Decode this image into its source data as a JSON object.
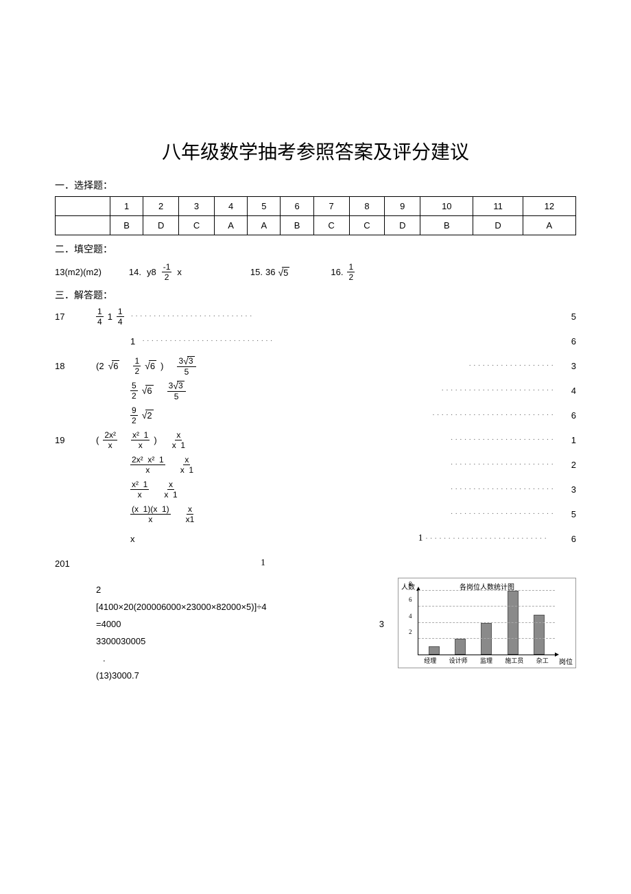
{
  "title": "八年级数学抽考参照答案及评分建议",
  "sections": {
    "s1": "一．选择题：",
    "s2": "二．填空题：",
    "s3": "三．解答题："
  },
  "mc": {
    "nums": [
      "1",
      "2",
      "3",
      "4",
      "5",
      "6",
      "7",
      "8",
      "9",
      "10",
      "11",
      "12"
    ],
    "ans": [
      "B",
      "D",
      "C",
      "A",
      "A",
      "B",
      "C",
      "C",
      "D",
      "B",
      "D",
      "A"
    ]
  },
  "fill": {
    "q13": "13(m2)(m2)",
    "q14_a": "14.",
    "q14_b": "y8",
    "q14_frac_num": "-1",
    "q14_frac_den": "2",
    "q14_c": "x",
    "q15_a": "15.",
    "q15_b": "36",
    "q15_rad": "5",
    "q16_a": "16.",
    "q16_frac_num": "1",
    "q16_frac_den": "2"
  },
  "q17": {
    "num": "17",
    "l1_a": "1",
    "l1_b": "1",
    "l1_frac_num": "1",
    "l1_frac_den": "4",
    "l1_c": ".",
    "l1_lead": "4",
    "s1": "5",
    "l2": "1",
    "s2": "6"
  },
  "q18": {
    "num": "18",
    "l1_a": "(2",
    "l1_r1": "6",
    "l1_frac_num": "1",
    "l1_frac_den": "2",
    "l1_r2": "6",
    "l1_b": ")",
    "l1_f2_num": "3",
    "l1_f2_rad": "3",
    "l1_f2_den": "5",
    "s1": "3",
    "l2_f1_num": "5",
    "l2_f1_den": "2",
    "l2_r1": "6",
    "l2_f2_num": "3",
    "l2_f2_rad": "3",
    "l2_f2_den": "5",
    "s2": "4",
    "l3_frac_num": "9",
    "l3_frac_den": "2",
    "l3_rad": "2",
    "s3": "6"
  },
  "q19": {
    "num": "19",
    "l1": "(2x²/x − (x²−1)/x) · x/(x−1)",
    "s1": "1",
    "s2": "2",
    "s3": "3",
    "s4": "5",
    "l5_a": "x",
    "l5_b": "1",
    "s5": "6"
  },
  "q20": {
    "num": "201",
    "r1": "1",
    "l2": "2",
    "l3": "[4100×20(200006000×23000×82000×5)]÷4",
    "l4": "=4000",
    "r4": "3",
    "l5": "3300030005",
    "l6": ".",
    "l7": "(13)3000.7"
  },
  "chart": {
    "title": "各岗位人数统计图",
    "ylabel": "人数",
    "xlabel": "岗位",
    "ymax": 8,
    "yticks": [
      2,
      4,
      6,
      8
    ],
    "categories": [
      "经理",
      "设计师",
      "监理",
      "施工员",
      "杂工"
    ],
    "values": [
      1,
      2,
      4,
      8,
      5
    ],
    "bar_color": "#8a8a8a",
    "grid_color": "#aaaaaa",
    "axis_color": "#000000",
    "background_color": "#ffffff"
  }
}
